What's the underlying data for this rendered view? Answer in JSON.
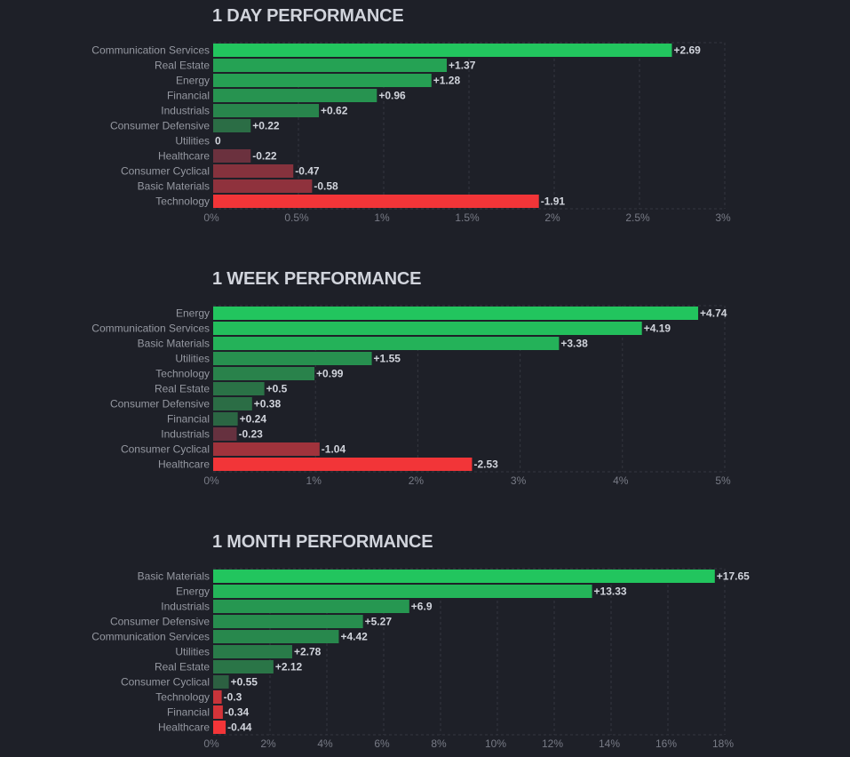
{
  "chart_data": [
    {
      "type": "bar",
      "orientation": "horizontal",
      "title": "1 DAY PERFORMANCE",
      "categories": [
        "Communication Services",
        "Real Estate",
        "Energy",
        "Financial",
        "Industrials",
        "Consumer Defensive",
        "Utilities",
        "Healthcare",
        "Consumer Cyclical",
        "Basic Materials",
        "Technology"
      ],
      "values": [
        2.69,
        1.37,
        1.28,
        0.96,
        0.62,
        0.22,
        0,
        -0.22,
        -0.47,
        -0.58,
        -1.91
      ],
      "value_labels": [
        "+2.69",
        "+1.37",
        "+1.28",
        "+0.96",
        "+0.62",
        "+0.22",
        "0",
        "-0.22",
        "-0.47",
        "-0.58",
        "-1.91"
      ],
      "xlim": [
        0,
        3
      ],
      "xticks": [
        0,
        0.5,
        1,
        1.5,
        2,
        2.5,
        3
      ],
      "xtick_labels": [
        "0%",
        "0.5%",
        "1%",
        "1.5%",
        "2%",
        "2.5%",
        "3%"
      ],
      "bar_length": "absolute value",
      "grid": true
    },
    {
      "type": "bar",
      "orientation": "horizontal",
      "title": "1 WEEK PERFORMANCE",
      "categories": [
        "Energy",
        "Communication Services",
        "Basic Materials",
        "Utilities",
        "Technology",
        "Real Estate",
        "Consumer Defensive",
        "Financial",
        "Industrials",
        "Consumer Cyclical",
        "Healthcare"
      ],
      "values": [
        4.74,
        4.19,
        3.38,
        1.55,
        0.99,
        0.5,
        0.38,
        0.24,
        -0.23,
        -1.04,
        -2.53
      ],
      "value_labels": [
        "+4.74",
        "+4.19",
        "+3.38",
        "+1.55",
        "+0.99",
        "+0.5",
        "+0.38",
        "+0.24",
        "-0.23",
        "-1.04",
        "-2.53"
      ],
      "xlim": [
        0,
        5
      ],
      "xticks": [
        0,
        1,
        2,
        3,
        4,
        5
      ],
      "xtick_labels": [
        "0%",
        "1%",
        "2%",
        "3%",
        "4%",
        "5%"
      ],
      "bar_length": "absolute value",
      "grid": true
    },
    {
      "type": "bar",
      "orientation": "horizontal",
      "title": "1 MONTH PERFORMANCE",
      "categories": [
        "Basic Materials",
        "Energy",
        "Industrials",
        "Consumer Defensive",
        "Communication Services",
        "Utilities",
        "Real Estate",
        "Consumer Cyclical",
        "Technology",
        "Financial",
        "Healthcare"
      ],
      "values": [
        17.65,
        13.33,
        6.9,
        5.27,
        4.42,
        2.78,
        2.12,
        0.55,
        -0.3,
        -0.34,
        -0.44
      ],
      "value_labels": [
        "+17.65",
        "+13.33",
        "+6.9",
        "+5.27",
        "+4.42",
        "+2.78",
        "+2.12",
        "+0.55",
        "-0.3",
        "-0.34",
        "-0.44"
      ],
      "xlim": [
        0,
        18
      ],
      "xticks": [
        0,
        2,
        4,
        6,
        8,
        10,
        12,
        14,
        16,
        18
      ],
      "xtick_labels": [
        "0%",
        "2%",
        "4%",
        "6%",
        "8%",
        "10%",
        "12%",
        "14%",
        "16%",
        "18%"
      ],
      "bar_length": "absolute value",
      "grid": true
    }
  ],
  "colors": {
    "background": "#1e2028",
    "positive_strong": "#22c55e",
    "positive_weak": "#2e4a3b",
    "negative_strong": "#f23538",
    "negative_weak": "#4a3040",
    "grid": "#34363f",
    "title": "#d1d4dc",
    "category_label": "#9598a1",
    "value_label": "#d1d4dc",
    "tick_label": "#787b86"
  }
}
